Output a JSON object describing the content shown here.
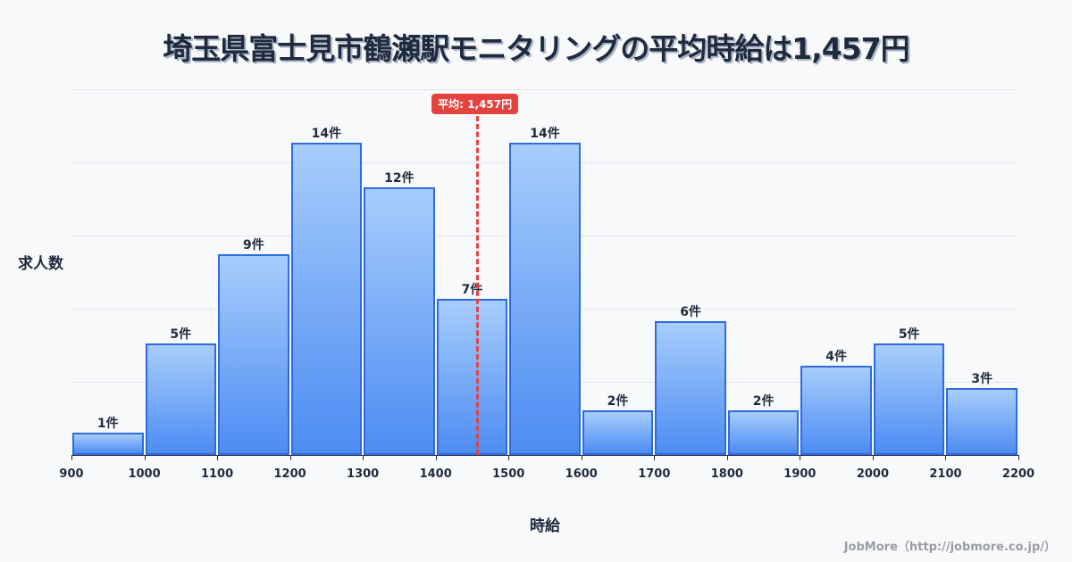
{
  "title": "埼玉県富士見市鶴瀬駅モニタリングの平均時給は1,457円",
  "mean_badge": "平均: 1,457円",
  "ylabel": "求人数",
  "xlabel": "時給",
  "footer": "JobMore（http://jobmore.co.jp/）",
  "colors": {
    "bar_fill_top": "#a7cdfb",
    "bar_fill_bottom": "#4d8cf3",
    "bar_border": "#2f6be0",
    "mean_line": "#e5413f",
    "text": "#1f2a3c"
  },
  "chart_data": {
    "type": "bar",
    "title": "埼玉県富士見市鶴瀬駅モニタリングの平均時給は1,457円",
    "xlabel": "時給",
    "ylabel": "求人数",
    "bins": [
      [
        900,
        1000
      ],
      [
        1000,
        1100
      ],
      [
        1100,
        1200
      ],
      [
        1200,
        1300
      ],
      [
        1300,
        1400
      ],
      [
        1400,
        1500
      ],
      [
        1500,
        1600
      ],
      [
        1600,
        1700
      ],
      [
        1700,
        1800
      ],
      [
        1800,
        1900
      ],
      [
        1900,
        2000
      ],
      [
        2000,
        2100
      ],
      [
        2100,
        2200
      ]
    ],
    "categories": [
      "900-1000",
      "1000-1100",
      "1100-1200",
      "1200-1300",
      "1300-1400",
      "1400-1500",
      "1500-1600",
      "1600-1700",
      "1700-1800",
      "1800-1900",
      "1900-2000",
      "2000-2100",
      "2100-2200"
    ],
    "values": [
      1,
      5,
      9,
      14,
      12,
      7,
      14,
      2,
      6,
      2,
      4,
      5,
      3
    ],
    "value_labels": [
      "1件",
      "5件",
      "9件",
      "14件",
      "12件",
      "7件",
      "14件",
      "2件",
      "6件",
      "2件",
      "4件",
      "5件",
      "3件"
    ],
    "x_ticks": [
      "900",
      "1000",
      "1100",
      "1200",
      "1300",
      "1400",
      "1500",
      "1600",
      "1700",
      "1800",
      "1900",
      "2000",
      "2100",
      "2200"
    ],
    "mean": 1457,
    "mean_label": "平均: 1,457円",
    "xlim": [
      900,
      2200
    ],
    "ylim": [
      0,
      16.4
    ],
    "grid": true
  }
}
